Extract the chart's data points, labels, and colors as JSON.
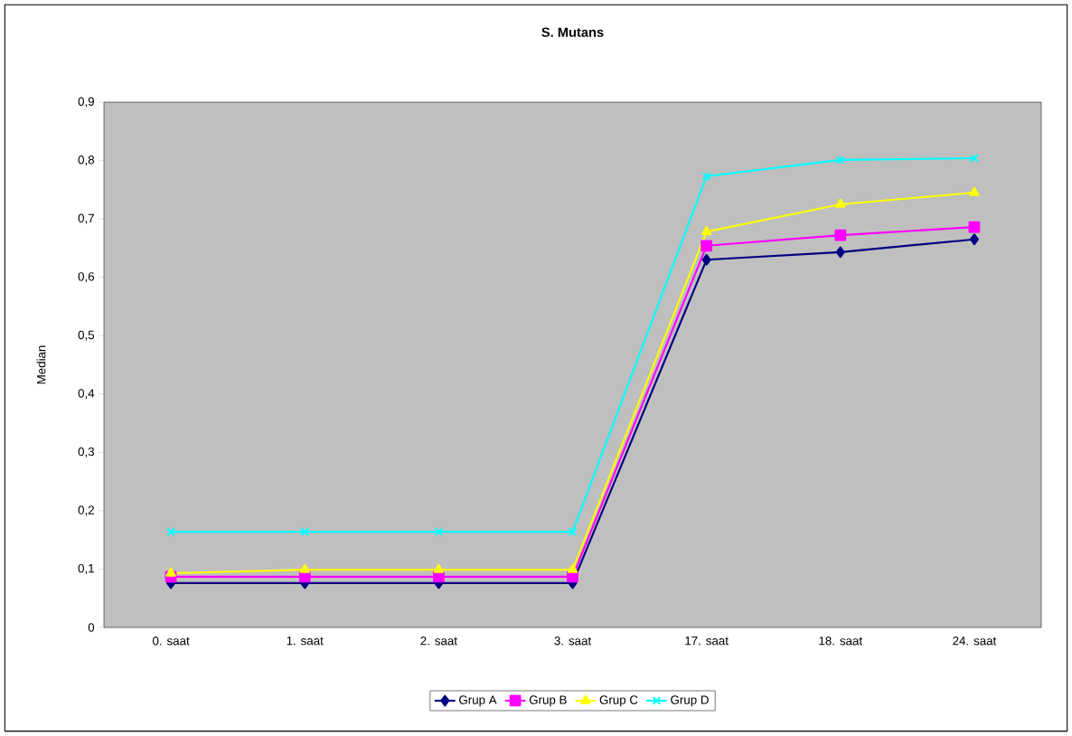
{
  "chart_data": {
    "type": "line",
    "title": "S. Mutans",
    "ylabel": "Median",
    "categories": [
      "0. saat",
      "1. saat",
      "2. saat",
      "3. saat",
      "17. saat",
      "18. saat",
      "24. saat"
    ],
    "series": [
      {
        "name": "Grup A",
        "color": "#000080",
        "marker": "diamond",
        "values": [
          0.076,
          0.076,
          0.076,
          0.076,
          0.63,
          0.643,
          0.665
        ]
      },
      {
        "name": "Grup B",
        "color": "#ff00ff",
        "marker": "square",
        "values": [
          0.087,
          0.087,
          0.087,
          0.087,
          0.654,
          0.672,
          0.686
        ]
      },
      {
        "name": "Grup C",
        "color": "#ffff00",
        "marker": "triangle",
        "values": [
          0.093,
          0.099,
          0.099,
          0.099,
          0.678,
          0.725,
          0.745
        ]
      },
      {
        "name": "Grup D",
        "color": "#00ffff",
        "marker": "cross",
        "values": [
          0.164,
          0.164,
          0.164,
          0.164,
          0.773,
          0.801,
          0.804
        ]
      }
    ],
    "ylim": [
      0,
      0.9
    ],
    "yticks": [
      0,
      {
        "value": 0.1,
        "label": "0,1"
      },
      {
        "value": 0.2,
        "label": "0,2"
      },
      {
        "value": 0.3,
        "label": "0,3"
      },
      {
        "value": 0.4,
        "label": "0,4"
      },
      {
        "value": 0.5,
        "label": "0,5"
      },
      {
        "value": 0.6,
        "label": "0,6"
      },
      {
        "value": 0.7,
        "label": "0,7"
      },
      {
        "value": 0.8,
        "label": "0,8"
      },
      {
        "value": 0.9,
        "label": "0,9"
      }
    ],
    "grid": false,
    "legend": "bottom",
    "line_style": "solid"
  }
}
